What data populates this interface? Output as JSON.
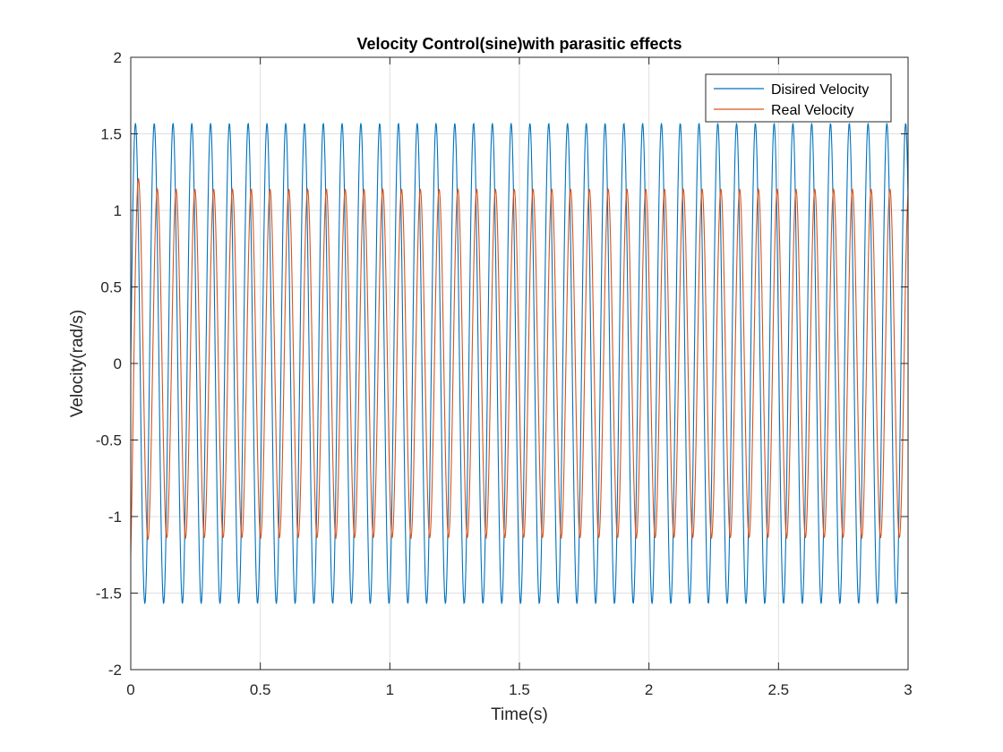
{
  "chart_data": {
    "type": "line",
    "title": "Velocity Control(sine)with parasitic effects",
    "xlabel": "Time(s)",
    "ylabel": "Velocity(rad/s)",
    "xlim": [
      0,
      3
    ],
    "ylim": [
      -2,
      2
    ],
    "xticks": [
      0,
      0.5,
      1,
      1.5,
      2,
      2.5,
      3
    ],
    "xtick_labels": [
      "0",
      "0.5",
      "1",
      "1.5",
      "2",
      "2.5",
      "3"
    ],
    "yticks": [
      -2,
      -1.5,
      -1,
      -0.5,
      0,
      0.5,
      1,
      1.5,
      2
    ],
    "ytick_labels": [
      "-2",
      "-1.5",
      "-1",
      "-0.5",
      "0",
      "0.5",
      "1",
      "1.5",
      "2"
    ],
    "grid": true,
    "legend_position": "top-right",
    "series": [
      {
        "name": "Disired Velocity",
        "color": "#0072BD",
        "amplitude": 1.57,
        "period": 0.0725,
        "phase": 0
      },
      {
        "name": "Real Velocity",
        "color": "#D95319",
        "amplitude": 1.14,
        "period": 0.0725,
        "phase": 0.012,
        "initial_peak": 1.45
      }
    ]
  }
}
